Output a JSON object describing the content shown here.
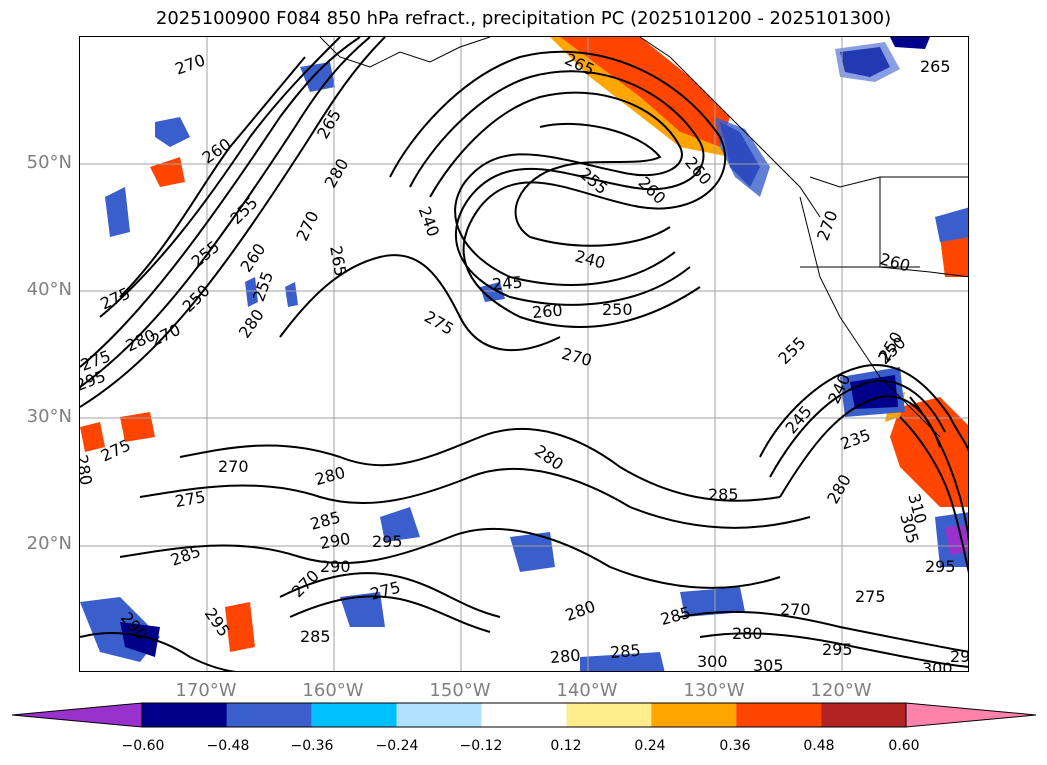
{
  "title": "2025100900 F084 850 hPa refract., precipitation PC (2025101200 - 2025101300)",
  "lat_labels": [
    "50°N",
    "40°N",
    "30°N",
    "20°N"
  ],
  "lon_labels": [
    "170°W",
    "160°W",
    "150°W",
    "140°W",
    "130°W",
    "120°W"
  ],
  "colorbar": {
    "ticks": [
      "−0.60",
      "−0.48",
      "−0.36",
      "−0.24",
      "−0.12",
      "0.12",
      "0.24",
      "0.36",
      "0.48",
      "0.60"
    ],
    "colors": [
      "#9932cc",
      "#00008b",
      "#3a5fcd",
      "#00bfff",
      "#b0e2ff",
      "#ffffff",
      "#ffec8b",
      "#ffa500",
      "#ff4500",
      "#b22222",
      "#ff82ab"
    ]
  },
  "contour_labels": [
    "270",
    "260",
    "265",
    "255",
    "250",
    "245",
    "240",
    "235",
    "275",
    "280",
    "285",
    "290",
    "295",
    "300",
    "305",
    "310"
  ],
  "placed_labels": [
    {
      "text": "270"
    },
    {
      "text": "265"
    },
    {
      "text": "260"
    },
    {
      "text": "255"
    },
    {
      "text": "280"
    },
    {
      "text": "270"
    },
    {
      "text": "260"
    },
    {
      "text": "255"
    },
    {
      "text": "250"
    },
    {
      "text": "275"
    },
    {
      "text": "280"
    },
    {
      "text": "275"
    },
    {
      "text": "295"
    },
    {
      "text": "265"
    },
    {
      "text": "240"
    },
    {
      "text": "255"
    },
    {
      "text": "240"
    },
    {
      "text": "245"
    },
    {
      "text": "260"
    },
    {
      "text": "250"
    },
    {
      "text": "275"
    },
    {
      "text": "270"
    },
    {
      "text": "265"
    },
    {
      "text": "260"
    },
    {
      "text": "265"
    },
    {
      "text": "270"
    },
    {
      "text": "260"
    },
    {
      "text": "255"
    },
    {
      "text": "250"
    },
    {
      "text": "245"
    },
    {
      "text": "240"
    },
    {
      "text": "235"
    },
    {
      "text": "275"
    },
    {
      "text": "270"
    },
    {
      "text": "280"
    },
    {
      "text": "275"
    },
    {
      "text": "280"
    },
    {
      "text": "285"
    },
    {
      "text": "280"
    },
    {
      "text": "285"
    },
    {
      "text": "290"
    },
    {
      "text": "285"
    },
    {
      "text": "270"
    },
    {
      "text": "275"
    },
    {
      "text": "290"
    },
    {
      "text": "295"
    },
    {
      "text": "290"
    },
    {
      "text": "295"
    },
    {
      "text": "285"
    },
    {
      "text": "280"
    },
    {
      "text": "280"
    },
    {
      "text": "285"
    },
    {
      "text": "285"
    },
    {
      "text": "270"
    },
    {
      "text": "280"
    },
    {
      "text": "300"
    },
    {
      "text": "305"
    },
    {
      "text": "275"
    },
    {
      "text": "295"
    },
    {
      "text": "300"
    },
    {
      "text": "310"
    },
    {
      "text": "305"
    },
    {
      "text": "295"
    },
    {
      "text": "29"
    },
    {
      "text": "280"
    },
    {
      "text": "260"
    },
    {
      "text": "250"
    },
    {
      "text": "255"
    },
    {
      "text": "270"
    },
    {
      "text": "280"
    }
  ]
}
